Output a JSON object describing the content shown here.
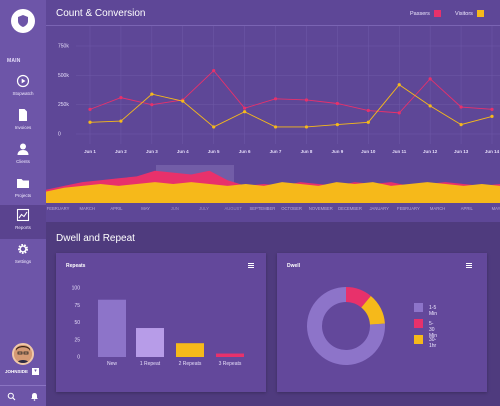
{
  "sidebar": {
    "logo": "shield-logo",
    "section_label": "MAIN",
    "items": [
      {
        "label": "Stopwatch",
        "icon": "play-circle-icon"
      },
      {
        "label": "Invoices",
        "icon": "document-icon"
      },
      {
        "label": "Clients",
        "icon": "person-icon"
      },
      {
        "label": "Projects",
        "icon": "folder-icon"
      },
      {
        "label": "Reports",
        "icon": "chart-icon",
        "active": true
      },
      {
        "label": "Settings",
        "icon": "gear-icon"
      }
    ],
    "user": {
      "name": "JOHNSIDE",
      "dropdown": "▾"
    },
    "bottom_icons": [
      "search-icon",
      "bell-icon"
    ]
  },
  "count_conversion": {
    "title": "Count & Conversion",
    "legend": [
      {
        "label": "Passers",
        "color": "#e8316b"
      },
      {
        "label": "Visitors",
        "color": "#f6b91a"
      }
    ],
    "months": [
      "FEBRUARY",
      "MARCH",
      "APRIL",
      "MAY",
      "JUN",
      "JULY",
      "AUGUST",
      "SEPTEMBER",
      "OCTOBER",
      "NOVEMBER",
      "DECEMBER",
      "JANUARY",
      "FEBRUARY",
      "MARCH",
      "APRIL",
      "MAY"
    ],
    "selected_months": [
      "JUN",
      "JULY",
      "AUGUST"
    ]
  },
  "dwell_repeat": {
    "title": "Dwell and Repeat",
    "repeats_title": "Repeats",
    "dwell_title": "Dwell"
  },
  "chart_data": [
    {
      "type": "line",
      "title": "Count & Conversion",
      "x": [
        "Jun 1",
        "Jun 2",
        "Jun 3",
        "Jun 4",
        "Jun 5",
        "Jun 6",
        "Jun 7",
        "Jun 8",
        "Jun 9",
        "Jun 10",
        "Jun 11",
        "Jun 12",
        "Jun 13",
        "Jun 14"
      ],
      "y_ticks": [
        "0",
        "250k",
        "500k",
        "750k"
      ],
      "ylim": [
        0,
        750000
      ],
      "series": [
        {
          "name": "Passers",
          "color": "#e8316b",
          "values": [
            210000,
            310000,
            250000,
            290000,
            540000,
            220000,
            300000,
            290000,
            260000,
            200000,
            180000,
            470000,
            230000,
            210000
          ]
        },
        {
          "name": "Visitors",
          "color": "#f6b91a",
          "values": [
            100000,
            110000,
            340000,
            280000,
            60000,
            190000,
            60000,
            60000,
            80000,
            100000,
            420000,
            240000,
            80000,
            150000
          ]
        }
      ],
      "grid": true
    },
    {
      "type": "area",
      "series": [
        {
          "name": "Passers",
          "color": "#e8316b",
          "values": [
            0.35,
            0.45,
            0.55,
            0.6,
            0.65,
            0.7,
            0.85,
            0.8,
            0.75,
            0.85,
            0.6,
            0.45,
            0.5,
            0.45,
            0.55,
            0.5,
            0.45,
            0.55,
            0.5,
            0.55,
            0.45,
            0.5,
            0.55,
            0.5,
            0.45,
            0.5
          ]
        },
        {
          "name": "Visitors",
          "color": "#f6b91a",
          "values": [
            0.3,
            0.4,
            0.45,
            0.5,
            0.45,
            0.5,
            0.55,
            0.5,
            0.55,
            0.5,
            0.45,
            0.5,
            0.45,
            0.55,
            0.5,
            0.45,
            0.55,
            0.5,
            0.55,
            0.45,
            0.5,
            0.55,
            0.5,
            0.45,
            0.5,
            0.45
          ]
        }
      ]
    },
    {
      "type": "bar",
      "title": "Repeats",
      "categories": [
        "New",
        "1 Repeat",
        "2 Repeats",
        "3 Repeats"
      ],
      "values": [
        83,
        42,
        20,
        5
      ],
      "colors": [
        "#8d74c9",
        "#b79ce8",
        "#f6b91a",
        "#e8316b"
      ],
      "y_ticks": [
        "0",
        "25",
        "50",
        "75",
        "100"
      ],
      "ylim": [
        0,
        100
      ]
    },
    {
      "type": "pie",
      "title": "Dwell",
      "labels": [
        "1-5 Min",
        "5-30 Min",
        "30-1hr"
      ],
      "values": [
        76,
        11,
        13
      ],
      "colors": [
        "#8d74c9",
        "#e8316b",
        "#f6b91a"
      ]
    }
  ]
}
